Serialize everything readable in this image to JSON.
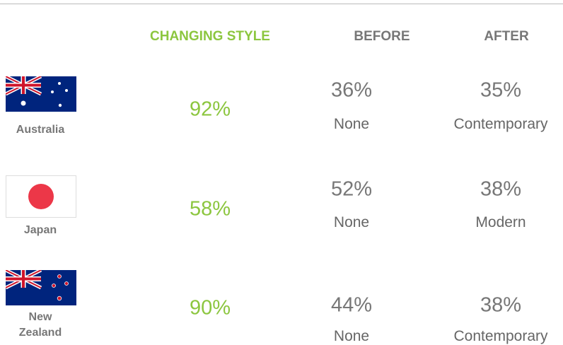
{
  "header": {
    "columns": [
      "CHANGING STYLE",
      "BEFORE",
      "AFTER"
    ]
  },
  "rows": [
    {
      "country": "Australia",
      "changing": "92%",
      "before_value": "36%",
      "before_style": "None",
      "after_value": "35%",
      "after_style": "Contemporary"
    },
    {
      "country": "Japan",
      "changing": "58%",
      "before_value": "52%",
      "before_style": "None",
      "after_value": "38%",
      "after_style": "Modern"
    },
    {
      "country": "New Zealand",
      "changing": "90%",
      "before_value": "44%",
      "before_style": "None",
      "after_value": "38%",
      "after_style": "Contemporary"
    }
  ]
}
